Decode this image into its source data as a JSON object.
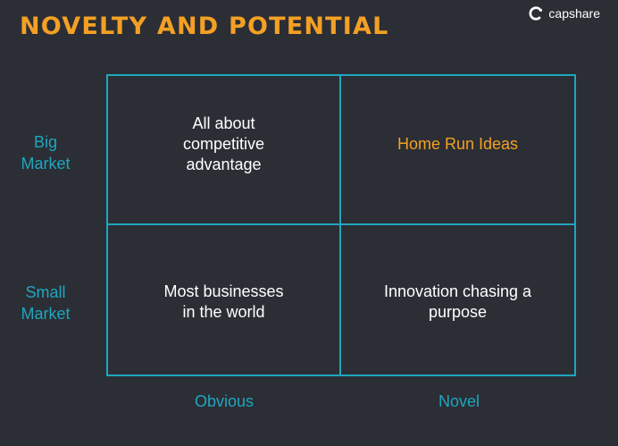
{
  "title": "NOVELTY AND POTENTIAL",
  "logo": {
    "text": "capshare",
    "icon": "capshare-logo-icon"
  },
  "colors": {
    "background": "#2b2e35",
    "accent_orange": "#f4a024",
    "accent_teal": "#1ea6be",
    "text": "#ffffff"
  },
  "y_axis": {
    "top": "Big\nMarket",
    "bottom": "Small\nMarket"
  },
  "x_axis": {
    "left": "Obvious",
    "right": "Novel"
  },
  "quadrants": {
    "top_left": "All about\ncompetitive\nadvantage",
    "top_right": "Home Run Ideas",
    "bottom_left": "Most businesses\nin the world",
    "bottom_right": "Innovation chasing a\npurpose"
  }
}
